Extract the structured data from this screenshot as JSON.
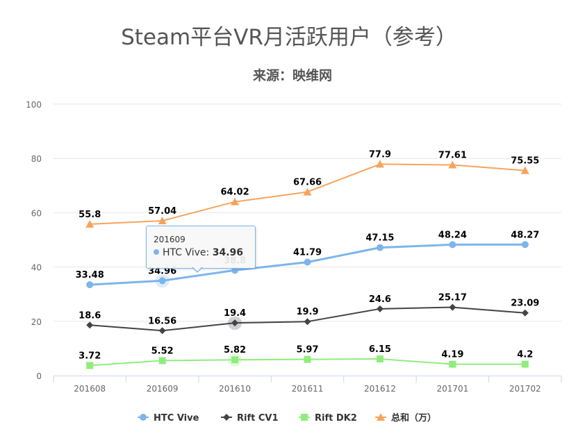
{
  "chart_data": {
    "type": "line",
    "title": "Steam平台VR月活跃用户（参考）",
    "subtitle": "来源：映维网",
    "xlabel": "",
    "ylabel": "",
    "categories": [
      "201608",
      "201609",
      "201610",
      "201611",
      "201612",
      "201701",
      "201702"
    ],
    "ylim": [
      0,
      100
    ],
    "yticks": [
      0,
      20,
      40,
      60,
      80,
      100
    ],
    "grid": true,
    "legend_position": "bottom",
    "series": [
      {
        "name": "HTC Vive",
        "color": "#7cb5ec",
        "marker": "circle",
        "values": [
          33.48,
          34.96,
          38.8,
          41.79,
          47.15,
          48.24,
          48.27
        ],
        "labels": [
          "33.48",
          "34.96",
          "38.8",
          "41.79",
          "47.15",
          "48.24",
          "48.27"
        ]
      },
      {
        "name": "Rift CV1",
        "color": "#434348",
        "marker": "diamond",
        "values": [
          18.6,
          16.56,
          19.4,
          19.9,
          24.6,
          25.17,
          23.09
        ],
        "labels": [
          "18.6",
          "16.56",
          "19.4",
          "19.9",
          "24.6",
          "25.17",
          "23.09"
        ]
      },
      {
        "name": "Rift DK2",
        "color": "#90ed7d",
        "marker": "square",
        "values": [
          3.72,
          5.52,
          5.82,
          5.97,
          6.15,
          4.19,
          4.2
        ],
        "labels": [
          "3.72",
          "5.52",
          "5.82",
          "5.97",
          "6.15",
          "4.19",
          "4.2"
        ]
      },
      {
        "name": "总和（万）",
        "color": "#f7a35c",
        "marker": "triangle",
        "values": [
          55.8,
          57.04,
          64.02,
          67.66,
          77.9,
          77.61,
          75.55
        ],
        "labels": [
          "55.8",
          "57.04",
          "64.02",
          "67.66",
          "77.9",
          "77.61",
          "75.55"
        ]
      }
    ],
    "tooltip": {
      "category": "201609",
      "series": "HTC Vive",
      "label": "HTC Vive: ",
      "value": "34.96"
    }
  }
}
